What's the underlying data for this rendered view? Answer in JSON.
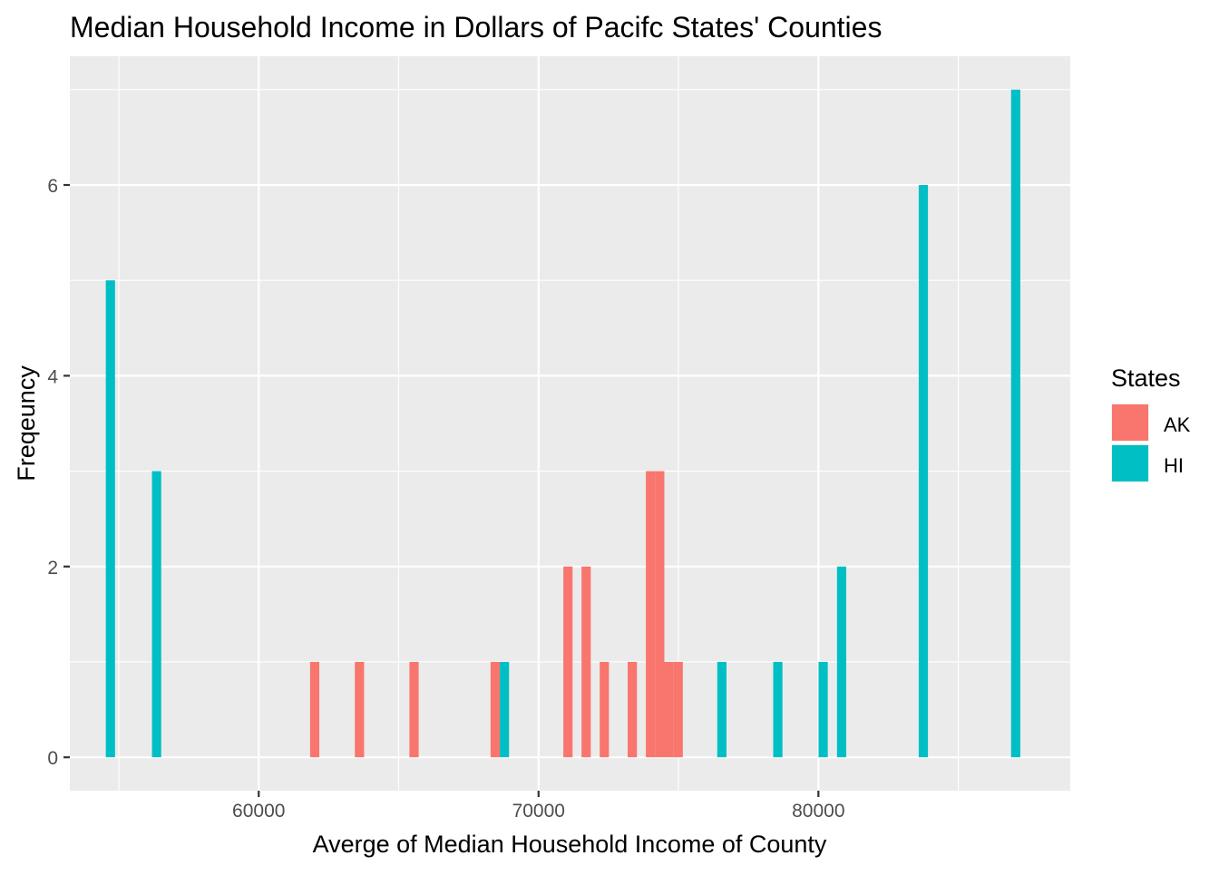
{
  "chart_data": {
    "type": "bar",
    "title": "Median Household Income in Dollars of Pacifc States' Counties",
    "xlabel": "Averge of Median Household Income of County",
    "ylabel": "Freqeuncy",
    "xlim": [
      53250,
      89000
    ],
    "ylim": [
      -0.35,
      7.35
    ],
    "x_ticks": [
      60000,
      70000,
      80000
    ],
    "x_tick_labels": [
      "60000",
      "70000",
      "80000"
    ],
    "y_ticks": [
      0,
      2,
      4,
      6
    ],
    "y_tick_labels": [
      "0",
      "2",
      "4",
      "6"
    ],
    "bin_width": 330,
    "grid": true,
    "legend": {
      "title": "States",
      "position": "right",
      "entries": [
        {
          "label": "AK",
          "color": "#F8766D"
        },
        {
          "label": "HI",
          "color": "#00BFC4"
        }
      ]
    },
    "series": [
      {
        "name": "AK",
        "color": "#F8766D",
        "bars": [
          {
            "x": 62000,
            "count": 1
          },
          {
            "x": 63600,
            "count": 1
          },
          {
            "x": 65550,
            "count": 1
          },
          {
            "x": 68450,
            "count": 1
          },
          {
            "x": 71050,
            "count": 2
          },
          {
            "x": 71700,
            "count": 2
          },
          {
            "x": 72350,
            "count": 1
          },
          {
            "x": 73350,
            "count": 1
          },
          {
            "x": 74000,
            "count": 3
          },
          {
            "x": 74330,
            "count": 3
          },
          {
            "x": 74660,
            "count": 1
          },
          {
            "x": 74990,
            "count": 1
          }
        ]
      },
      {
        "name": "HI",
        "color": "#00BFC4",
        "bars": [
          {
            "x": 54700,
            "count": 5
          },
          {
            "x": 56350,
            "count": 3
          },
          {
            "x": 68780,
            "count": 1
          },
          {
            "x": 76550,
            "count": 1
          },
          {
            "x": 78550,
            "count": 1
          },
          {
            "x": 80170,
            "count": 1
          },
          {
            "x": 80830,
            "count": 2
          },
          {
            "x": 83750,
            "count": 6
          },
          {
            "x": 87050,
            "count": 7
          }
        ]
      }
    ]
  }
}
